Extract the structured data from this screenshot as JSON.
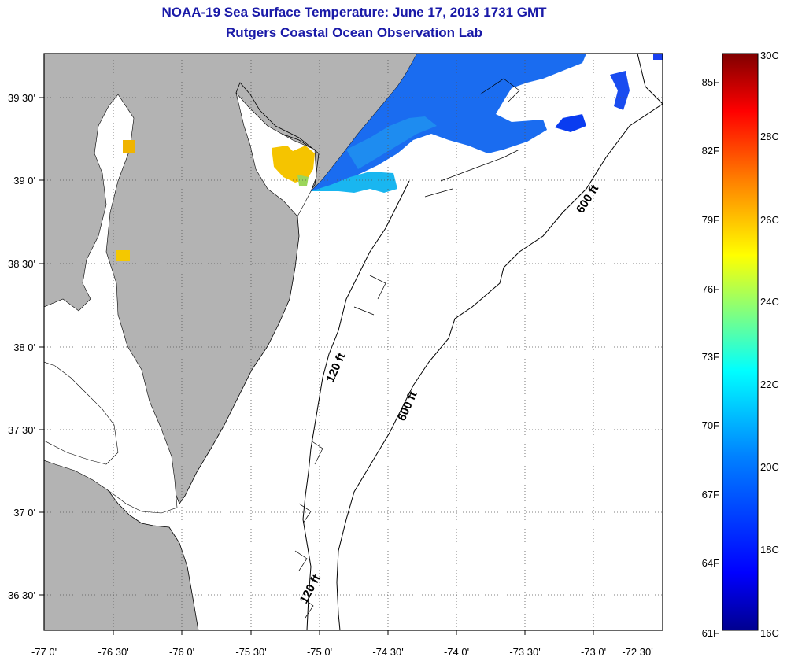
{
  "title": {
    "line1": "NOAA-19 Sea Surface Temperature:  June 17, 2013 1731 GMT",
    "line2": "Rutgers Coastal Ocean Observation Lab"
  },
  "colors": {
    "land": "#b3b3b3",
    "water_no_data": "#ffffff",
    "grid": "#555555",
    "title_text": "#1a1aa8"
  },
  "map": {
    "x_ticks": [
      "-77 0'",
      "-76 30'",
      "-76 0'",
      "-75 30'",
      "-75 0'",
      "-74 30'",
      "-74 0'",
      "-73 30'",
      "-73 0'",
      "-72 30'"
    ],
    "y_ticks": [
      "39 30'",
      "39 0'",
      "38 30'",
      "38 0'",
      "37 30'",
      "37 0'",
      "36 30'"
    ],
    "contour_labels": [
      {
        "id": "c600_top",
        "text": "600 ft"
      },
      {
        "id": "c120_mid",
        "text": "120 ft"
      },
      {
        "id": "c600_mid",
        "text": "600 ft"
      },
      {
        "id": "c120_bot",
        "text": "120 ft"
      }
    ]
  },
  "colorbar": {
    "top_c": "30C",
    "bottom_f": "61F",
    "bottom_c": "16C",
    "f_labels": [
      "85F",
      "82F",
      "79F",
      "76F",
      "73F",
      "70F",
      "67F",
      "64F"
    ],
    "c_labels": [
      "28C",
      "26C",
      "24C",
      "22C",
      "20C",
      "18C"
    ],
    "stops": [
      "#00008f",
      "#0000ff",
      "#0080ff",
      "#00ffff",
      "#80ff80",
      "#ffff00",
      "#ff8000",
      "#ff0000",
      "#800000"
    ]
  }
}
